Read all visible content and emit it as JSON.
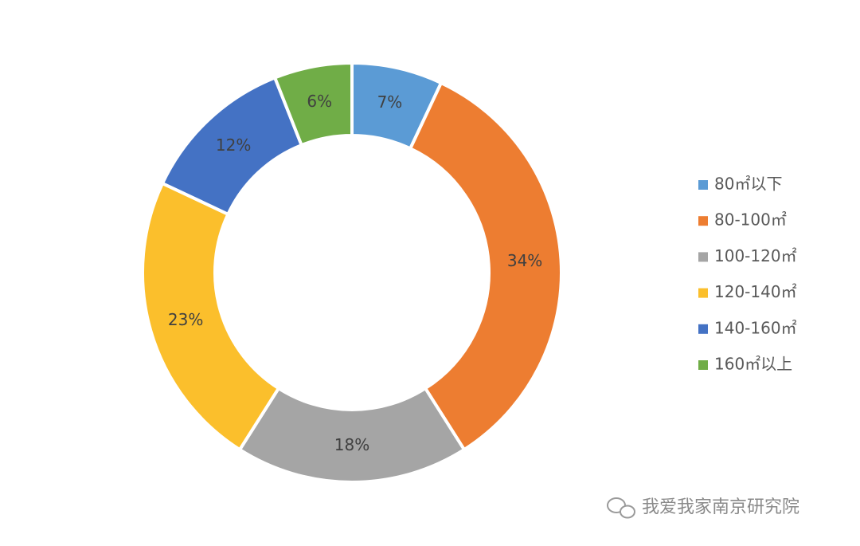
{
  "chart_data": {
    "type": "donut",
    "categories": [
      "80㎡以下",
      "80-100㎡",
      "100-120㎡",
      "120-140㎡",
      "140-160㎡",
      "160㎡以上"
    ],
    "values": [
      7,
      34,
      18,
      23,
      12,
      6
    ],
    "value_labels": [
      "7%",
      "34%",
      "18%",
      "23%",
      "12%",
      "6%"
    ],
    "colors": [
      "#5b9bd5",
      "#ed7d31",
      "#a5a5a5",
      "#fbbf2c",
      "#4472c4",
      "#70ad47"
    ],
    "legend": "right",
    "annotations": [
      "我爱我家南京研究院"
    ]
  }
}
